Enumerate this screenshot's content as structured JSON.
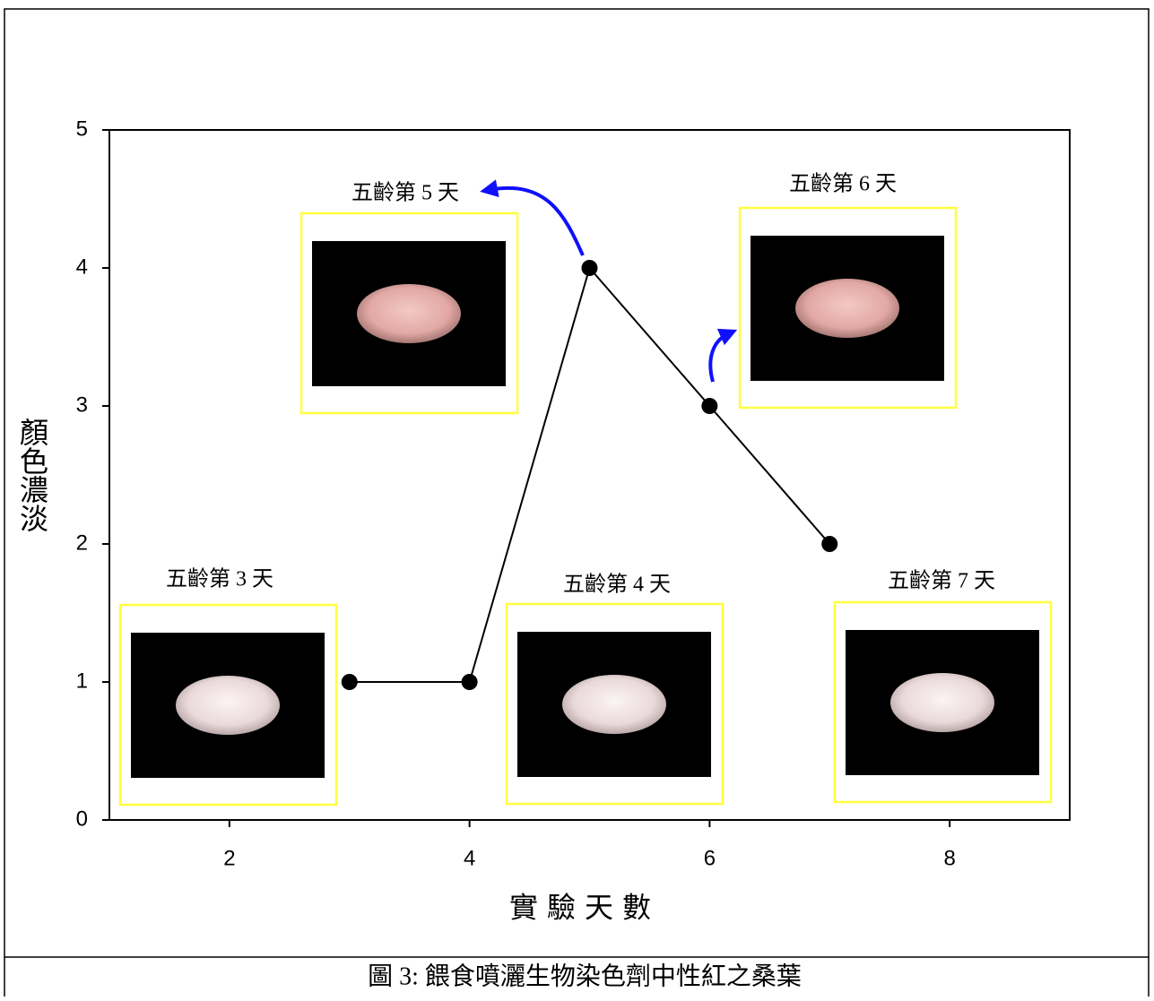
{
  "chart_data": {
    "type": "line",
    "x_label": "實驗天數",
    "y_label": "顏色濃淡",
    "caption": "圖 3: 餵食噴灑生物染色劑中性紅之桑葉",
    "x": [
      3,
      4,
      5,
      6,
      7
    ],
    "series": [
      {
        "color": "#000000",
        "values": [
          1,
          1,
          4,
          3,
          2
        ]
      }
    ],
    "xlim": [
      1,
      9
    ],
    "xticks": [
      2,
      4,
      6,
      8
    ],
    "ylim": [
      0,
      5
    ],
    "yticks": [
      0,
      1,
      2,
      3,
      4,
      5
    ],
    "annotations": [
      "五齡第 3 天",
      "五齡第 5 天",
      "五齡第 6 天",
      "五齡第 4 天",
      "五齡第 7 天"
    ]
  }
}
